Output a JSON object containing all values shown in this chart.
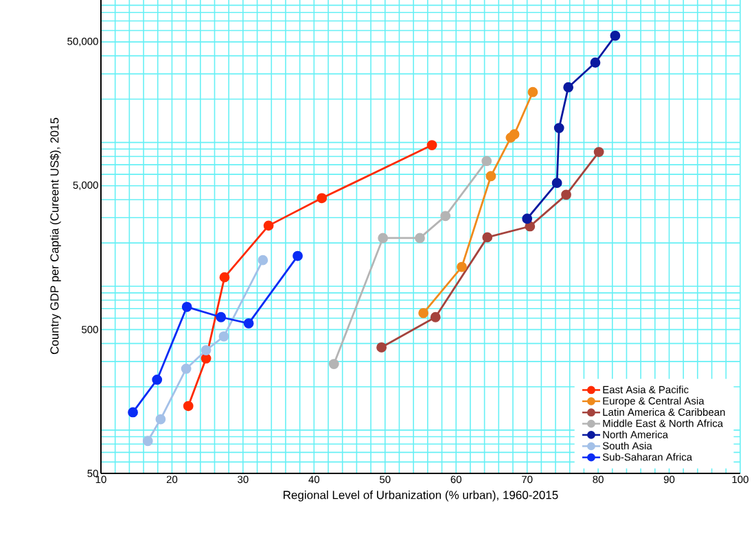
{
  "chart_data": {
    "type": "line",
    "xlabel": "Regional Level of Urbanization (% urban), 1960-2015",
    "ylabel": "Country GDP per Captia (Cureent US$), 2015",
    "xlim": [
      10,
      100
    ],
    "xticks": [
      10,
      20,
      30,
      40,
      50,
      60,
      70,
      80,
      90,
      100
    ],
    "ylim": [
      50,
      100000
    ],
    "yticks": [
      {
        "value": 50,
        "label": "50"
      },
      {
        "value": 500,
        "label": "500"
      },
      {
        "value": 5000,
        "label": "5,000"
      },
      {
        "value": 50000,
        "label": "50,000"
      }
    ],
    "log": "y",
    "grid": true,
    "legend": "bottom right",
    "marker": "circle",
    "line_style": "solid",
    "series": [
      {
        "name": "East Asia & Pacific",
        "color": "#ff2a00",
        "x": [
          22.3,
          24.8,
          27.4,
          33.6,
          41.1,
          56.6
        ],
        "values": [
          147,
          315,
          1155,
          2640,
          4100,
          9580
        ]
      },
      {
        "name": "Europe & Central Asia",
        "color": "#f08a1c",
        "x": [
          55.4,
          60.8,
          64.9,
          67.7,
          68.2,
          70.8
        ],
        "values": [
          651,
          1363,
          5830,
          10800,
          11400,
          22400
        ]
      },
      {
        "name": "Latin America & Caribbean",
        "color": "#a5433d",
        "x": [
          49.5,
          57.1,
          64.4,
          70.4,
          75.5,
          80.1
        ],
        "values": [
          376,
          610,
          2190,
          2610,
          4330,
          8580
        ]
      },
      {
        "name": "Middle East & North Africa",
        "color": "#b4b4b4",
        "x": [
          42.8,
          49.7,
          54.9,
          58.5,
          64.3
        ],
        "values": [
          288,
          2165,
          2165,
          3080,
          7430
        ]
      },
      {
        "name": "North America",
        "color": "#0a1aa0",
        "x": [
          70.0,
          74.2,
          74.5,
          75.8,
          79.6,
          82.4
        ],
        "values": [
          2950,
          5230,
          12600,
          24200,
          35900,
          55200
        ]
      },
      {
        "name": "South Asia",
        "color": "#a3c0e8",
        "x": [
          16.6,
          18.4,
          22.0,
          24.8,
          27.3,
          32.8
        ],
        "values": [
          84,
          119,
          267,
          359,
          448,
          1520
        ]
      },
      {
        "name": "Sub-Saharan Africa",
        "color": "#0a2cf5",
        "x": [
          14.5,
          17.9,
          22.1,
          26.9,
          30.8,
          37.7
        ],
        "values": [
          133,
          224,
          719,
          610,
          552,
          1625
        ]
      }
    ]
  }
}
